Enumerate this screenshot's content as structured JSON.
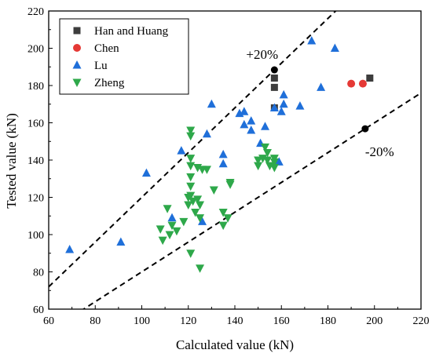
{
  "chart_data": {
    "type": "scatter",
    "title": "",
    "xlabel": "Calculated value (kN)",
    "ylabel": "Tested value (kN)",
    "xlim": [
      60,
      220
    ],
    "ylim": [
      60,
      220
    ],
    "xticks": [
      60,
      80,
      100,
      120,
      140,
      160,
      180,
      200,
      220
    ],
    "yticks": [
      60,
      80,
      100,
      120,
      140,
      160,
      180,
      200,
      220
    ],
    "grid": false,
    "legend_position": "top-left",
    "reference_lines": [
      {
        "label": "+20%",
        "slope": 1.2,
        "marker_x": 157,
        "marker_y": 188.4
      },
      {
        "label": "-20%",
        "slope": 0.8,
        "marker_x": 196,
        "marker_y": 156.8
      }
    ],
    "series": [
      {
        "name": "Han and Huang",
        "marker": "square",
        "color": "#3d3d3d",
        "points": [
          [
            157,
            184
          ],
          [
            157,
            179
          ],
          [
            157,
            168
          ],
          [
            198,
            184
          ]
        ]
      },
      {
        "name": "Chen",
        "marker": "circle",
        "color": "#e53935",
        "points": [
          [
            190,
            181
          ],
          [
            195,
            181
          ]
        ]
      },
      {
        "name": "Lu",
        "marker": "triangle-up",
        "color": "#1f6fd9",
        "points": [
          [
            69,
            92
          ],
          [
            91,
            96
          ],
          [
            102,
            133
          ],
          [
            113,
            109
          ],
          [
            117,
            145
          ],
          [
            126,
            107
          ],
          [
            128,
            154
          ],
          [
            130,
            170
          ],
          [
            135,
            143
          ],
          [
            135,
            138
          ],
          [
            142,
            165
          ],
          [
            144,
            166
          ],
          [
            144,
            159
          ],
          [
            147,
            161
          ],
          [
            147,
            156
          ],
          [
            151,
            149
          ],
          [
            153,
            158
          ],
          [
            157,
            168
          ],
          [
            159,
            139
          ],
          [
            160,
            166
          ],
          [
            161,
            175
          ],
          [
            161,
            170
          ],
          [
            168,
            169
          ],
          [
            173,
            204
          ],
          [
            177,
            179
          ],
          [
            183,
            200
          ]
        ]
      },
      {
        "name": "Zheng",
        "marker": "triangle-down",
        "color": "#2ea84a",
        "points": [
          [
            108,
            103
          ],
          [
            109,
            97
          ],
          [
            111,
            114
          ],
          [
            112,
            100
          ],
          [
            113,
            105
          ],
          [
            115,
            102
          ],
          [
            118,
            107
          ],
          [
            120,
            120
          ],
          [
            120,
            116
          ],
          [
            121,
            156
          ],
          [
            121,
            153
          ],
          [
            121,
            141
          ],
          [
            121,
            137
          ],
          [
            121,
            131
          ],
          [
            121,
            126
          ],
          [
            121,
            121
          ],
          [
            121,
            90
          ],
          [
            122,
            118
          ],
          [
            123,
            112
          ],
          [
            124,
            136
          ],
          [
            124,
            119
          ],
          [
            125,
            116
          ],
          [
            125,
            109
          ],
          [
            125,
            82
          ],
          [
            126,
            135
          ],
          [
            128,
            135
          ],
          [
            131,
            124
          ],
          [
            135,
            112
          ],
          [
            135,
            105
          ],
          [
            137,
            109
          ],
          [
            138,
            128
          ],
          [
            138,
            127
          ],
          [
            150,
            140
          ],
          [
            150,
            137
          ],
          [
            152,
            141
          ],
          [
            153,
            147
          ],
          [
            154,
            144
          ],
          [
            154,
            140
          ],
          [
            155,
            137
          ],
          [
            157,
            141
          ],
          [
            157,
            139
          ],
          [
            157,
            136
          ]
        ]
      }
    ]
  }
}
